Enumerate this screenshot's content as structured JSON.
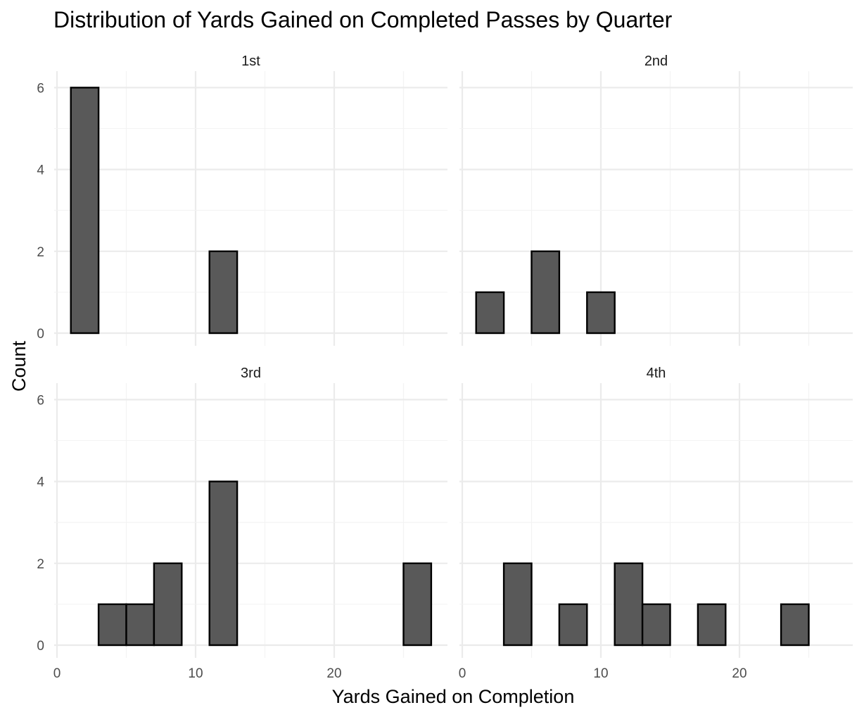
{
  "chart_data": {
    "type": "bar",
    "title": "Distribution of Yards Gained on Completed Passes by Quarter",
    "xlabel": "Yards Gained on Completion",
    "ylabel": "Count",
    "xlim": [
      0,
      28
    ],
    "ylim": [
      0,
      6
    ],
    "x_ticks": [
      "0",
      "10",
      "20"
    ],
    "y_ticks": [
      "0",
      "2",
      "4",
      "6"
    ],
    "bin_width": 2,
    "bins": [
      [
        1,
        3
      ],
      [
        3,
        5
      ],
      [
        5,
        7
      ],
      [
        7,
        9
      ],
      [
        9,
        11
      ],
      [
        11,
        13
      ],
      [
        13,
        15
      ],
      [
        15,
        17
      ],
      [
        17,
        19
      ],
      [
        19,
        21
      ],
      [
        21,
        23
      ],
      [
        23,
        25
      ],
      [
        25,
        27
      ]
    ],
    "bar_fill": "#595959",
    "bar_stroke": "#000000",
    "grid": true,
    "facets": [
      {
        "label": "1st",
        "counts": [
          6,
          0,
          0,
          0,
          0,
          2,
          0,
          0,
          0,
          0,
          0,
          0,
          0
        ]
      },
      {
        "label": "2nd",
        "counts": [
          1,
          0,
          2,
          0,
          1,
          0,
          0,
          0,
          0,
          0,
          0,
          0,
          0
        ]
      },
      {
        "label": "3rd",
        "counts": [
          0,
          1,
          1,
          2,
          0,
          4,
          0,
          0,
          0,
          0,
          0,
          0,
          2
        ]
      },
      {
        "label": "4th",
        "counts": [
          0,
          2,
          0,
          1,
          0,
          2,
          1,
          0,
          1,
          0,
          0,
          1,
          0
        ]
      }
    ]
  }
}
